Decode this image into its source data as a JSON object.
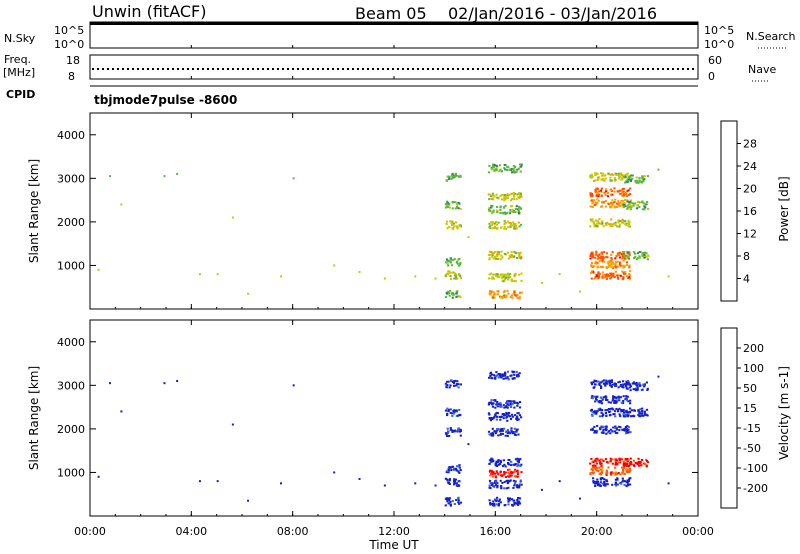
{
  "header": {
    "title": "Unwin (fitACF)",
    "beam": "Beam 05",
    "date_range": "02/Jan/2016 - 03/Jan/2016"
  },
  "top_panels": {
    "nsky_label": "N.Sky",
    "nsky_ticks": [
      "10^5",
      "10^0"
    ],
    "right_ticks_a": [
      "10^5",
      "10^0"
    ],
    "nsearch_label": "N.Search",
    "freq_label_1": "Freq.",
    "freq_label_2": "[MHz]",
    "freq_ticks": [
      "18",
      "8"
    ],
    "nave_ticks": [
      "60",
      "0"
    ],
    "nave_label": "Nave",
    "cpid_label": "CPID",
    "cpid_value": "tbjmode7pulse -8600"
  },
  "chart_data": [
    {
      "type": "heatmap",
      "name": "power",
      "ylabel": "Slant Range [km]",
      "y_ticks": [
        "1000",
        "2000",
        "3000",
        "4000"
      ],
      "ylim": [
        0,
        4500
      ],
      "colorbar_label": "Power [dB]",
      "colorbar_ticks": [
        "4",
        "8",
        "12",
        "16",
        "20",
        "24",
        "28"
      ],
      "colorbar_colors": [
        "#0014ff",
        "#1e46c8",
        "#2e7d6e",
        "#5fb83c",
        "#c8c800",
        "#ff9900",
        "#ff5500",
        "#ff0000"
      ],
      "clusters": [
        {
          "t": 14.0,
          "t2": 14.6,
          "r": 3050,
          "c": 3
        },
        {
          "t": 14.0,
          "t2": 14.6,
          "r": 2400,
          "c": 3
        },
        {
          "t": 14.0,
          "t2": 14.6,
          "r": 1950,
          "c": 4
        },
        {
          "t": 14.0,
          "t2": 14.6,
          "r": 1100,
          "c": 3
        },
        {
          "t": 14.0,
          "t2": 14.6,
          "r": 800,
          "c": 4
        },
        {
          "t": 14.0,
          "t2": 14.6,
          "r": 350,
          "c": 3
        },
        {
          "t": 15.7,
          "t2": 17.0,
          "r": 3250,
          "c": 3
        },
        {
          "t": 15.7,
          "t2": 17.0,
          "r": 2600,
          "c": 4
        },
        {
          "t": 15.7,
          "t2": 17.0,
          "r": 2300,
          "c": 3
        },
        {
          "t": 15.7,
          "t2": 17.0,
          "r": 1950,
          "c": 4
        },
        {
          "t": 15.7,
          "t2": 17.0,
          "r": 1250,
          "c": 4
        },
        {
          "t": 15.7,
          "t2": 17.0,
          "r": 750,
          "c": 4
        },
        {
          "t": 15.7,
          "t2": 17.0,
          "r": 350,
          "c": 5
        },
        {
          "t": 19.7,
          "t2": 21.3,
          "r": 3050,
          "c": 4
        },
        {
          "t": 19.7,
          "t2": 21.3,
          "r": 2700,
          "c": 6
        },
        {
          "t": 19.7,
          "t2": 21.3,
          "r": 2450,
          "c": 5
        },
        {
          "t": 19.7,
          "t2": 21.3,
          "r": 2000,
          "c": 4
        },
        {
          "t": 19.7,
          "t2": 21.3,
          "r": 1250,
          "c": 6
        },
        {
          "t": 19.7,
          "t2": 21.3,
          "r": 1050,
          "c": 5
        },
        {
          "t": 19.7,
          "t2": 21.3,
          "r": 800,
          "c": 6
        },
        {
          "t": 21.0,
          "t2": 22.0,
          "r": 3000,
          "c": 3
        },
        {
          "t": 21.0,
          "t2": 22.0,
          "r": 2400,
          "c": 3
        },
        {
          "t": 21.0,
          "t2": 22.0,
          "r": 1250,
          "c": 3
        }
      ]
    },
    {
      "type": "heatmap",
      "name": "velocity",
      "ylabel": "Slant Range [km]",
      "y_ticks": [
        "1000",
        "2000",
        "3000",
        "4000"
      ],
      "ylim": [
        0,
        4500
      ],
      "colorbar_label": "Velocity [m s-1]",
      "colorbar_ticks": [
        "200",
        "100",
        "50",
        "15",
        "-15",
        "-50",
        "-100",
        "-200"
      ],
      "colorbar_colors": [
        "#1420c8",
        "#3c64dc",
        "#2e8c5a",
        "#6ed23c",
        "#c8c8c8",
        "#ffc800",
        "#ff9600",
        "#ff5a00",
        "#ff0000"
      ],
      "clusters": [
        {
          "t": 14.0,
          "t2": 14.6,
          "r": 3050,
          "c": 0
        },
        {
          "t": 14.0,
          "t2": 14.6,
          "r": 2400,
          "c": 0
        },
        {
          "t": 14.0,
          "t2": 14.6,
          "r": 1950,
          "c": 0
        },
        {
          "t": 14.0,
          "t2": 14.6,
          "r": 1100,
          "c": 0
        },
        {
          "t": 14.0,
          "t2": 14.6,
          "r": 800,
          "c": 0
        },
        {
          "t": 14.0,
          "t2": 14.6,
          "r": 350,
          "c": 0
        },
        {
          "t": 15.7,
          "t2": 17.0,
          "r": 3250,
          "c": 0
        },
        {
          "t": 15.7,
          "t2": 17.0,
          "r": 2600,
          "c": 0
        },
        {
          "t": 15.7,
          "t2": 17.0,
          "r": 2300,
          "c": 0
        },
        {
          "t": 15.7,
          "t2": 17.0,
          "r": 1950,
          "c": 0
        },
        {
          "t": 15.7,
          "t2": 17.0,
          "r": 1250,
          "c": 0
        },
        {
          "t": 15.7,
          "t2": 17.0,
          "r": 1000,
          "c": 8
        },
        {
          "t": 15.7,
          "t2": 17.0,
          "r": 750,
          "c": 0
        },
        {
          "t": 15.7,
          "t2": 17.0,
          "r": 350,
          "c": 0
        },
        {
          "t": 19.7,
          "t2": 21.3,
          "r": 3050,
          "c": 0
        },
        {
          "t": 19.7,
          "t2": 21.3,
          "r": 2700,
          "c": 0
        },
        {
          "t": 19.7,
          "t2": 21.3,
          "r": 2400,
          "c": 0
        },
        {
          "t": 19.7,
          "t2": 21.3,
          "r": 2000,
          "c": 0
        },
        {
          "t": 19.7,
          "t2": 21.3,
          "r": 1250,
          "c": 8
        },
        {
          "t": 19.7,
          "t2": 21.3,
          "r": 1050,
          "c": 7
        },
        {
          "t": 19.7,
          "t2": 21.3,
          "r": 800,
          "c": 0
        },
        {
          "t": 21.0,
          "t2": 22.0,
          "r": 3000,
          "c": 0
        },
        {
          "t": 21.0,
          "t2": 22.0,
          "r": 2400,
          "c": 0
        },
        {
          "t": 21.0,
          "t2": 22.0,
          "r": 1250,
          "c": 8
        }
      ]
    }
  ],
  "x_axis": {
    "label": "Time UT",
    "ticks": [
      "00:00",
      "04:00",
      "08:00",
      "12:00",
      "16:00",
      "20:00",
      "00:00"
    ],
    "hours": [
      0,
      4,
      8,
      12,
      16,
      20,
      24
    ]
  },
  "sparse_echoes": [
    {
      "t": 0.75,
      "r": 3050
    },
    {
      "t": 0.3,
      "r": 900
    },
    {
      "t": 1.2,
      "r": 2400
    },
    {
      "t": 2.9,
      "r": 3050
    },
    {
      "t": 3.4,
      "r": 3100
    },
    {
      "t": 4.3,
      "r": 800
    },
    {
      "t": 5.0,
      "r": 800
    },
    {
      "t": 5.6,
      "r": 2100
    },
    {
      "t": 6.2,
      "r": 350
    },
    {
      "t": 7.5,
      "r": 750
    },
    {
      "t": 8.0,
      "r": 3000
    },
    {
      "t": 9.6,
      "r": 1000
    },
    {
      "t": 10.6,
      "r": 850
    },
    {
      "t": 11.6,
      "r": 700
    },
    {
      "t": 12.8,
      "r": 750
    },
    {
      "t": 13.6,
      "r": 700
    },
    {
      "t": 14.9,
      "r": 1650
    },
    {
      "t": 17.8,
      "r": 600
    },
    {
      "t": 18.5,
      "r": 800
    },
    {
      "t": 19.3,
      "r": 400
    },
    {
      "t": 22.4,
      "r": 3200
    },
    {
      "t": 22.8,
      "r": 750
    }
  ]
}
